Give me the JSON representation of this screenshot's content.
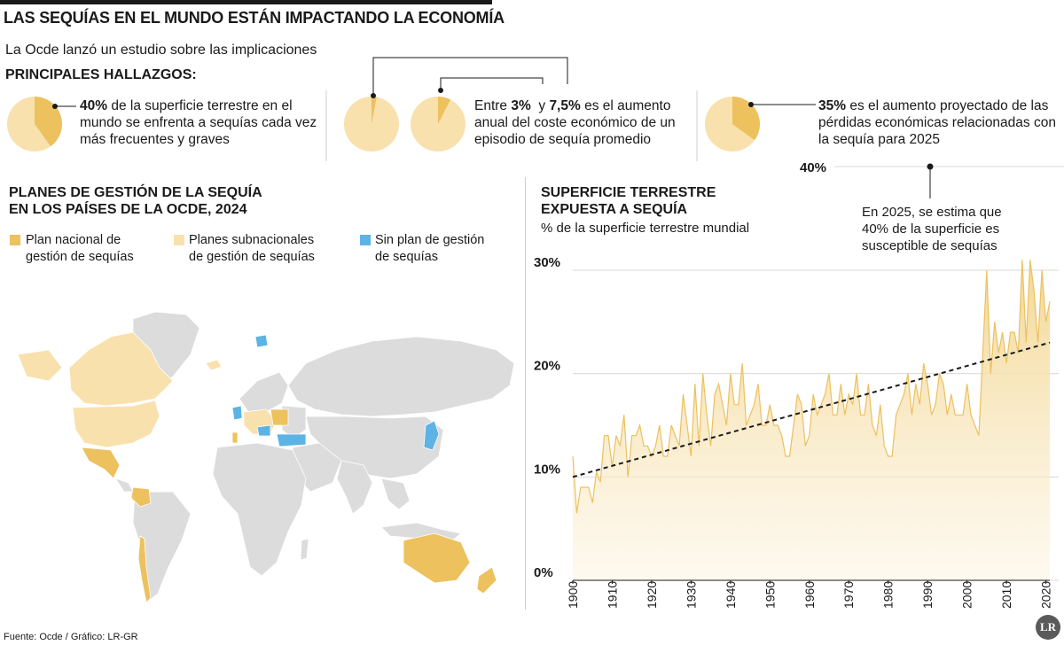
{
  "header": {
    "title": "LAS SEQUÍAS EN EL MUNDO ESTÁN IMPACTANDO LA ECONOMÍA",
    "subtitle": "La Ocde lanzó un estudio sobre las implicaciones"
  },
  "findings": {
    "heading": "PRINCIPALES HALLAZGOS:",
    "f1": {
      "bold": "40%",
      "text": " de la superficie terrestre en el mundo se enfrenta a sequías cada vez más frecuentes y graves",
      "share": 0.4
    },
    "f2": {
      "pre": "Entre ",
      "b1": "3%",
      "mid": "  y ",
      "b2": "7,5%",
      "post": " es el aumento anual del coste económico de un episodio de sequía promedio",
      "share_low": 0.03,
      "share_high": 0.075
    },
    "f3": {
      "bold": "35%",
      "text": " es el aumento proyectado de las pérdidas económicas relacionadas con la sequía para 2025",
      "share": 0.35
    }
  },
  "map": {
    "title1": "PLANES DE GESTIÓN DE LA SEQUÍA",
    "title2": "EN LOS PAÍSES DE LA OCDE, 2024",
    "legend": [
      {
        "label1": "Plan nacional de",
        "label2": "gestión de sequías",
        "color": "#ecc15e"
      },
      {
        "label1": "Planes subnacionales",
        "label2": "de gestión de sequías",
        "color": "#f9e1ae"
      },
      {
        "label1": "Sin plan de gestión",
        "label2": "de sequías",
        "color": "#5db3e4"
      }
    ],
    "land_color": "#dcdcdc"
  },
  "chart_data": {
    "type": "area",
    "title": "SUPERFICIE TERRESTRE EXPUESTA A SEQUÍA",
    "title_line1": "SUPERFICIE TERRESTRE",
    "title_line2": "EXPUESTA A SEQUÍA",
    "ylabel": "% de la superficie terrestre mundial",
    "xlabel": "",
    "ylim": [
      0,
      30
    ],
    "xlim": [
      1900,
      2021
    ],
    "yticks": [
      "0%",
      "10%",
      "20%",
      "30%"
    ],
    "ytick_values": [
      0,
      10,
      20,
      30
    ],
    "xticks": [
      1900,
      1910,
      1920,
      1930,
      1940,
      1950,
      1960,
      1970,
      1980,
      1990,
      2000,
      2010,
      2020
    ],
    "grid": true,
    "annotation_value": "40%",
    "annotation_text1": "En 2025, se estima que",
    "annotation_text2": "40% de la superficie es",
    "annotation_text3": "susceptible de sequías",
    "annotation_target": {
      "year": 2025,
      "value": 40
    },
    "trend": {
      "start": [
        1900,
        10
      ],
      "end": [
        2021,
        23
      ]
    },
    "fill_color": "#f3d58e",
    "line_color": "#ecc15e",
    "x": [
      1900,
      1901,
      1902,
      1903,
      1904,
      1905,
      1906,
      1907,
      1908,
      1909,
      1910,
      1911,
      1912,
      1913,
      1914,
      1915,
      1916,
      1917,
      1918,
      1919,
      1920,
      1921,
      1922,
      1923,
      1924,
      1925,
      1926,
      1927,
      1928,
      1929,
      1930,
      1931,
      1932,
      1933,
      1934,
      1935,
      1936,
      1937,
      1938,
      1939,
      1940,
      1941,
      1942,
      1943,
      1944,
      1945,
      1946,
      1947,
      1948,
      1949,
      1950,
      1951,
      1952,
      1953,
      1954,
      1955,
      1956,
      1957,
      1958,
      1959,
      1960,
      1961,
      1962,
      1963,
      1964,
      1965,
      1966,
      1967,
      1968,
      1969,
      1970,
      1971,
      1972,
      1973,
      1974,
      1975,
      1976,
      1977,
      1978,
      1979,
      1980,
      1981,
      1982,
      1983,
      1984,
      1985,
      1986,
      1987,
      1988,
      1989,
      1990,
      1991,
      1992,
      1993,
      1994,
      1995,
      1996,
      1997,
      1998,
      1999,
      2000,
      2001,
      2002,
      2003,
      2004,
      2005,
      2006,
      2007,
      2008,
      2009,
      2010,
      2011,
      2012,
      2013,
      2014,
      2015,
      2016,
      2017,
      2018,
      2019,
      2020,
      2021
    ],
    "values": [
      12,
      6.5,
      9,
      9,
      9,
      7.5,
      10.5,
      9.5,
      14,
      14,
      11,
      14,
      13,
      16,
      10,
      14,
      14,
      15,
      13,
      13,
      12,
      13,
      15,
      12,
      12,
      15,
      14,
      13,
      18,
      15,
      12,
      19,
      13,
      20,
      16,
      13,
      18,
      19,
      17,
      15,
      20,
      17,
      17,
      21,
      15,
      16,
      17,
      19,
      15,
      15,
      17,
      15,
      15,
      14,
      12,
      12,
      15,
      18,
      17,
      13,
      14,
      18,
      16,
      17,
      18,
      20,
      16,
      16,
      19,
      16,
      18,
      17,
      20,
      16,
      16,
      19,
      15,
      14,
      17,
      13,
      12,
      12,
      16,
      17,
      18,
      20,
      16,
      19,
      17,
      21,
      19,
      16,
      17,
      20,
      19,
      16,
      18,
      16,
      16,
      16,
      19,
      16,
      15,
      14,
      22,
      30,
      20,
      25,
      22,
      24,
      21,
      24,
      24,
      22,
      31,
      23,
      31,
      28,
      23,
      30,
      25,
      27
    ]
  },
  "footer": {
    "source": "Fuente: Ocde / Gráfico: LR-GR",
    "logo": "LR"
  }
}
